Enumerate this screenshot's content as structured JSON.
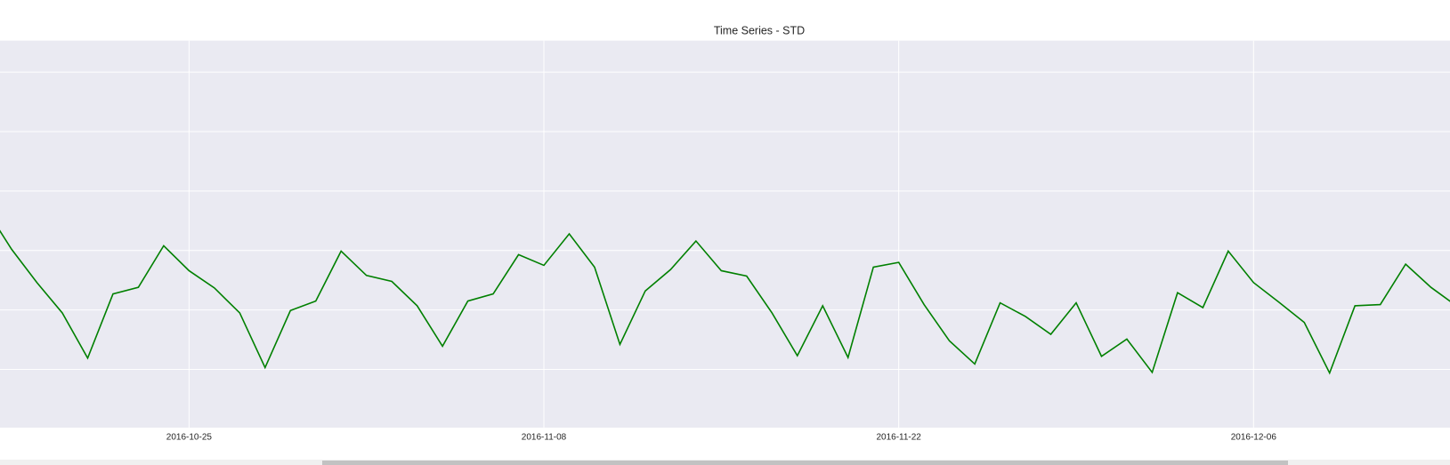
{
  "chart_data": {
    "type": "line",
    "title": "Time Series - STD",
    "x": [
      "2016-10-17",
      "2016-10-18",
      "2016-10-19",
      "2016-10-20",
      "2016-10-21",
      "2016-10-22",
      "2016-10-23",
      "2016-10-24",
      "2016-10-25",
      "2016-10-26",
      "2016-10-27",
      "2016-10-28",
      "2016-10-29",
      "2016-10-30",
      "2016-10-31",
      "2016-11-01",
      "2016-11-02",
      "2016-11-03",
      "2016-11-04",
      "2016-11-05",
      "2016-11-06",
      "2016-11-07",
      "2016-11-08",
      "2016-11-09",
      "2016-11-10",
      "2016-11-11",
      "2016-11-12",
      "2016-11-13",
      "2016-11-14",
      "2016-11-15",
      "2016-11-16",
      "2016-11-17",
      "2016-11-18",
      "2016-11-19",
      "2016-11-20",
      "2016-11-21",
      "2016-11-22",
      "2016-11-23",
      "2016-11-24",
      "2016-11-25",
      "2016-11-26",
      "2016-11-27",
      "2016-11-28",
      "2016-11-29",
      "2016-11-30",
      "2016-12-01",
      "2016-12-02",
      "2016-12-03",
      "2016-12-04",
      "2016-12-05",
      "2016-12-06",
      "2016-12-07",
      "2016-12-08",
      "2016-12-09",
      "2016-12-10",
      "2016-12-11",
      "2016-12-12",
      "2016-12-13",
      "2016-12-14"
    ],
    "series": [
      {
        "color": "#008000",
        "values": [
          3.69,
          3.02,
          2.46,
          1.95,
          1.19,
          2.27,
          2.38,
          3.08,
          2.66,
          2.37,
          1.95,
          1.03,
          1.99,
          2.15,
          2.99,
          2.58,
          2.48,
          2.07,
          1.39,
          2.15,
          2.27,
          2.93,
          2.75,
          3.28,
          2.72,
          1.42,
          2.32,
          2.68,
          3.16,
          2.66,
          2.57,
          1.95,
          1.23,
          2.07,
          1.2,
          2.72,
          2.8,
          2.09,
          1.48,
          1.09,
          2.12,
          1.89,
          1.59,
          2.12,
          1.22,
          1.51,
          0.95,
          2.29,
          2.04,
          2.99,
          2.46,
          2.13,
          1.79,
          0.94,
          2.07,
          2.09,
          2.77,
          2.38,
          2.07
        ]
      }
    ],
    "xlim": [
      "2016-10-17T13:00",
      "2016-12-13T18:00"
    ],
    "xticks": [
      "2016-10-25",
      "2016-11-08",
      "2016-11-22",
      "2016-12-06"
    ],
    "ylim": [
      0.02,
      6.53
    ],
    "yticks": [
      1,
      2,
      3,
      4,
      5,
      6
    ],
    "grid": true
  }
}
